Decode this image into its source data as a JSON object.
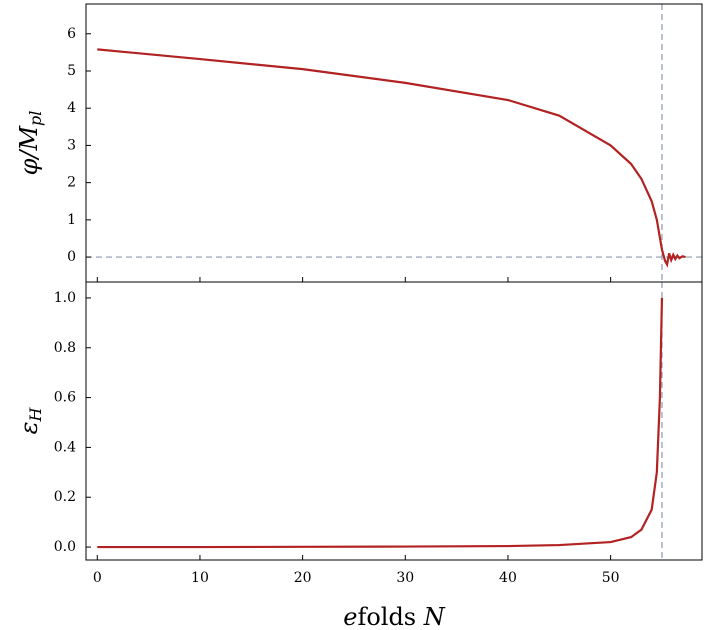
{
  "chart_data": [
    {
      "type": "line",
      "ylabel": {
        "base": "φ/M",
        "sub": "pl"
      },
      "x": [
        0,
        10,
        20,
        30,
        40,
        45,
        50,
        52,
        53,
        54,
        54.5,
        55,
        55.3,
        55.5,
        55.7,
        55.9,
        56.1,
        56.3,
        56.5,
        56.7,
        57,
        57.3
      ],
      "values": [
        5.58,
        5.32,
        5.05,
        4.68,
        4.22,
        3.8,
        3.0,
        2.5,
        2.1,
        1.5,
        1.0,
        0.2,
        -0.1,
        -0.2,
        0.1,
        -0.08,
        0.06,
        -0.05,
        0.04,
        -0.03,
        0.02,
        0
      ],
      "color": "#b22222",
      "xlim": [
        -1.1,
        58.9
      ],
      "ylim": [
        -0.67,
        6.8
      ],
      "xticks": [
        0,
        10,
        20,
        30,
        40,
        50
      ],
      "yticks": [
        0,
        1,
        2,
        3,
        4,
        5,
        6
      ],
      "vline": 55,
      "hline": 0,
      "ref_color": "#8c9ab0"
    },
    {
      "type": "line",
      "ylabel": {
        "base": "ε",
        "sub": "H"
      },
      "xlabel": {
        "italic": "e",
        "text": "folds ",
        "var": "N"
      },
      "x": [
        0,
        10,
        20,
        30,
        40,
        45,
        50,
        52,
        53,
        54,
        54.5,
        54.8,
        55
      ],
      "values": [
        0.0,
        0.0,
        0.001,
        0.002,
        0.004,
        0.008,
        0.02,
        0.04,
        0.07,
        0.15,
        0.3,
        0.6,
        1.0
      ],
      "color": "#b22222",
      "xlim": [
        -1.1,
        58.9
      ],
      "ylim": [
        -0.052,
        1.064
      ],
      "xticks": [
        0,
        10,
        20,
        30,
        40,
        50
      ],
      "yticks": [
        {
          "value": 0,
          "label": "0.0"
        },
        0.2,
        0.4,
        0.6,
        0.8,
        {
          "value": 1,
          "label": "1.0"
        }
      ],
      "vline": 55,
      "ref_color": "#8c9ab0"
    }
  ]
}
